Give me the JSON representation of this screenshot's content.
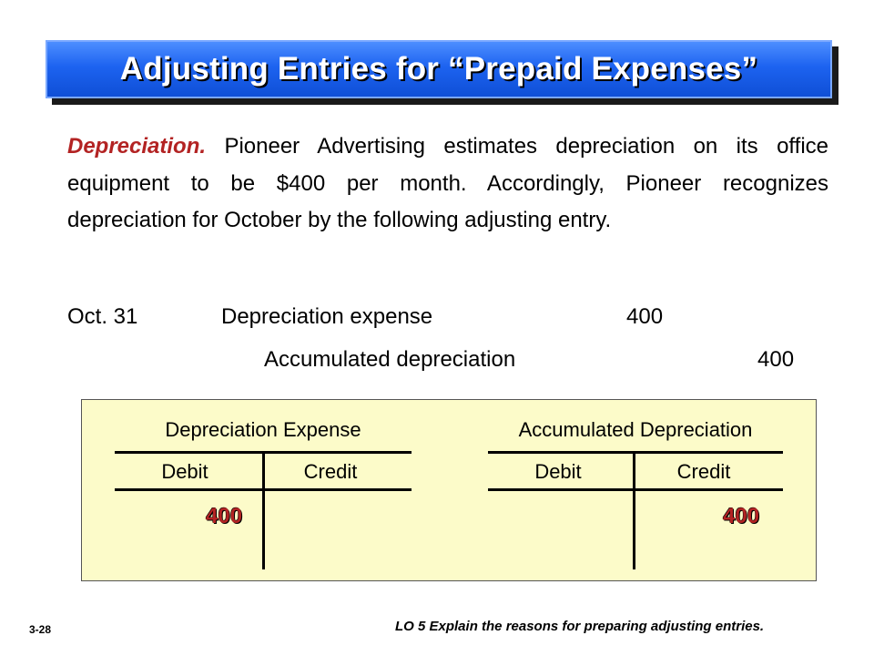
{
  "title": "Adjusting Entries for “Prepaid Expenses”",
  "paragraph": {
    "lead": "Depreciation.",
    "body": " Pioneer Advertising estimates depreciation on its office equipment to be $400 per month. Accordingly, Pioneer recognizes depreciation for October by the following adjusting entry."
  },
  "journal_entry": {
    "date": "Oct. 31",
    "debit_account": "Depreciation expense",
    "debit_amount": "400",
    "credit_account": "Accumulated depreciation",
    "credit_amount": "400"
  },
  "t_accounts": [
    {
      "title": "Depreciation Expense",
      "debit_label": "Debit",
      "credit_label": "Credit",
      "value": "400",
      "side": "debit"
    },
    {
      "title": "Accumulated Depreciation",
      "debit_label": "Debit",
      "credit_label": "Credit",
      "value": "400",
      "side": "credit"
    }
  ],
  "footer": {
    "slide_number": "3-28",
    "objective": "LO 5  Explain the reasons for preparing adjusting entries."
  },
  "colors": {
    "banner": "#1d63f0",
    "accent_red": "#b32323",
    "t_box_bg": "#fcfbc9"
  }
}
